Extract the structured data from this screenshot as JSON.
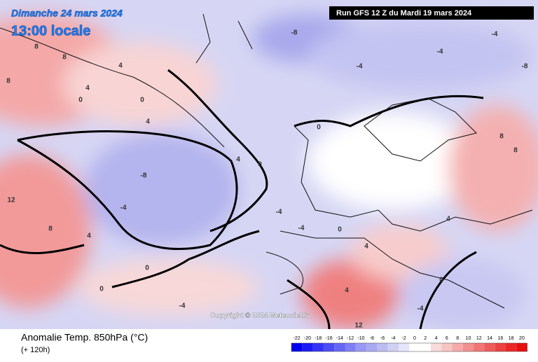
{
  "header": {
    "date": "Dimanche 24 mars 2024",
    "time": "13:00 locale",
    "run": "Run GFS 12 Z du Mardi 19 mars 2024"
  },
  "copyright": "Copyright © 2024 Meteociel.fr",
  "footer": {
    "title": "Anomalie Temp. 850hPa (°C)",
    "lead": "(+ 120h)"
  },
  "legend": {
    "labels": [
      -22,
      -20,
      -18,
      -16,
      -14,
      -12,
      -10,
      -8,
      -6,
      -4,
      -2,
      0,
      2,
      4,
      6,
      8,
      10,
      12,
      14,
      16,
      18,
      20
    ],
    "colors": [
      "#0000f0",
      "#1a1af5",
      "#3333f5",
      "#4d4df5",
      "#6666f5",
      "#7f7ff5",
      "#9999f5",
      "#a9a9f2",
      "#bcbcf2",
      "#d0d0f5",
      "#e4e4fa",
      "#ffffff",
      "#ffffff",
      "#fadada",
      "#f7c4c4",
      "#f5aaaa",
      "#f29090",
      "#f07676",
      "#ee5c5c",
      "#ec4242",
      "#ea2828",
      "#e80f0f"
    ]
  },
  "contours": [
    8,
    8,
    8,
    4,
    4,
    0,
    0,
    4,
    -8,
    -4,
    4,
    0,
    -8,
    -4,
    -4,
    -4,
    -8,
    12,
    8,
    4,
    0,
    0,
    -4,
    -4,
    -4,
    0,
    4,
    4,
    12,
    4,
    8,
    8,
    -4,
    0,
    0
  ]
}
